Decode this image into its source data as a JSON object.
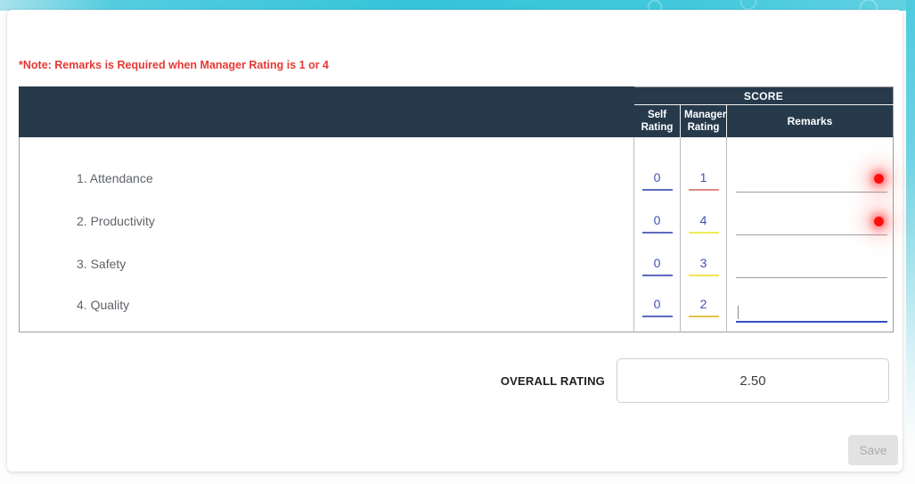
{
  "note": {
    "text": "*Note: Remarks is Required when Manager Rating is 1 or 4"
  },
  "table": {
    "score_header": "SCORE",
    "columns": {
      "self": "Self Rating",
      "manager": "Manager Rating",
      "remarks": "Remarks"
    },
    "rows": [
      {
        "criteria": "1. Attendance",
        "self_rating": "0",
        "manager_rating": "1",
        "manager_line_color": "#e08a8a",
        "remarks_value": "",
        "remarks_required": true
      },
      {
        "criteria": "2. Productivity",
        "self_rating": "0",
        "manager_rating": "4",
        "manager_line_color": "#eeea58",
        "remarks_value": "",
        "remarks_required": true
      },
      {
        "criteria": "3. Safety",
        "self_rating": "0",
        "manager_rating": "3",
        "manager_line_color": "#f0e455",
        "remarks_value": "",
        "remarks_required": false
      },
      {
        "criteria": "4. Quality",
        "self_rating": "0",
        "manager_rating": "2",
        "manager_line_color": "#e7c24d",
        "remarks_value": "",
        "remarks_required": false,
        "remarks_focused": true
      }
    ]
  },
  "overall": {
    "label": "OVERALL RATING",
    "value": "2.50"
  },
  "actions": {
    "save_label": "Save",
    "save_enabled": false
  },
  "colors": {
    "header_bg": "#263a4c",
    "note_red": "#e53935",
    "rating_link": "#3f51b5",
    "self_line": "#5c6bc0",
    "remarks_focus_line": "#3350c0",
    "required_dot": "#ff0d0d",
    "accent_teal": "#35c4da"
  }
}
